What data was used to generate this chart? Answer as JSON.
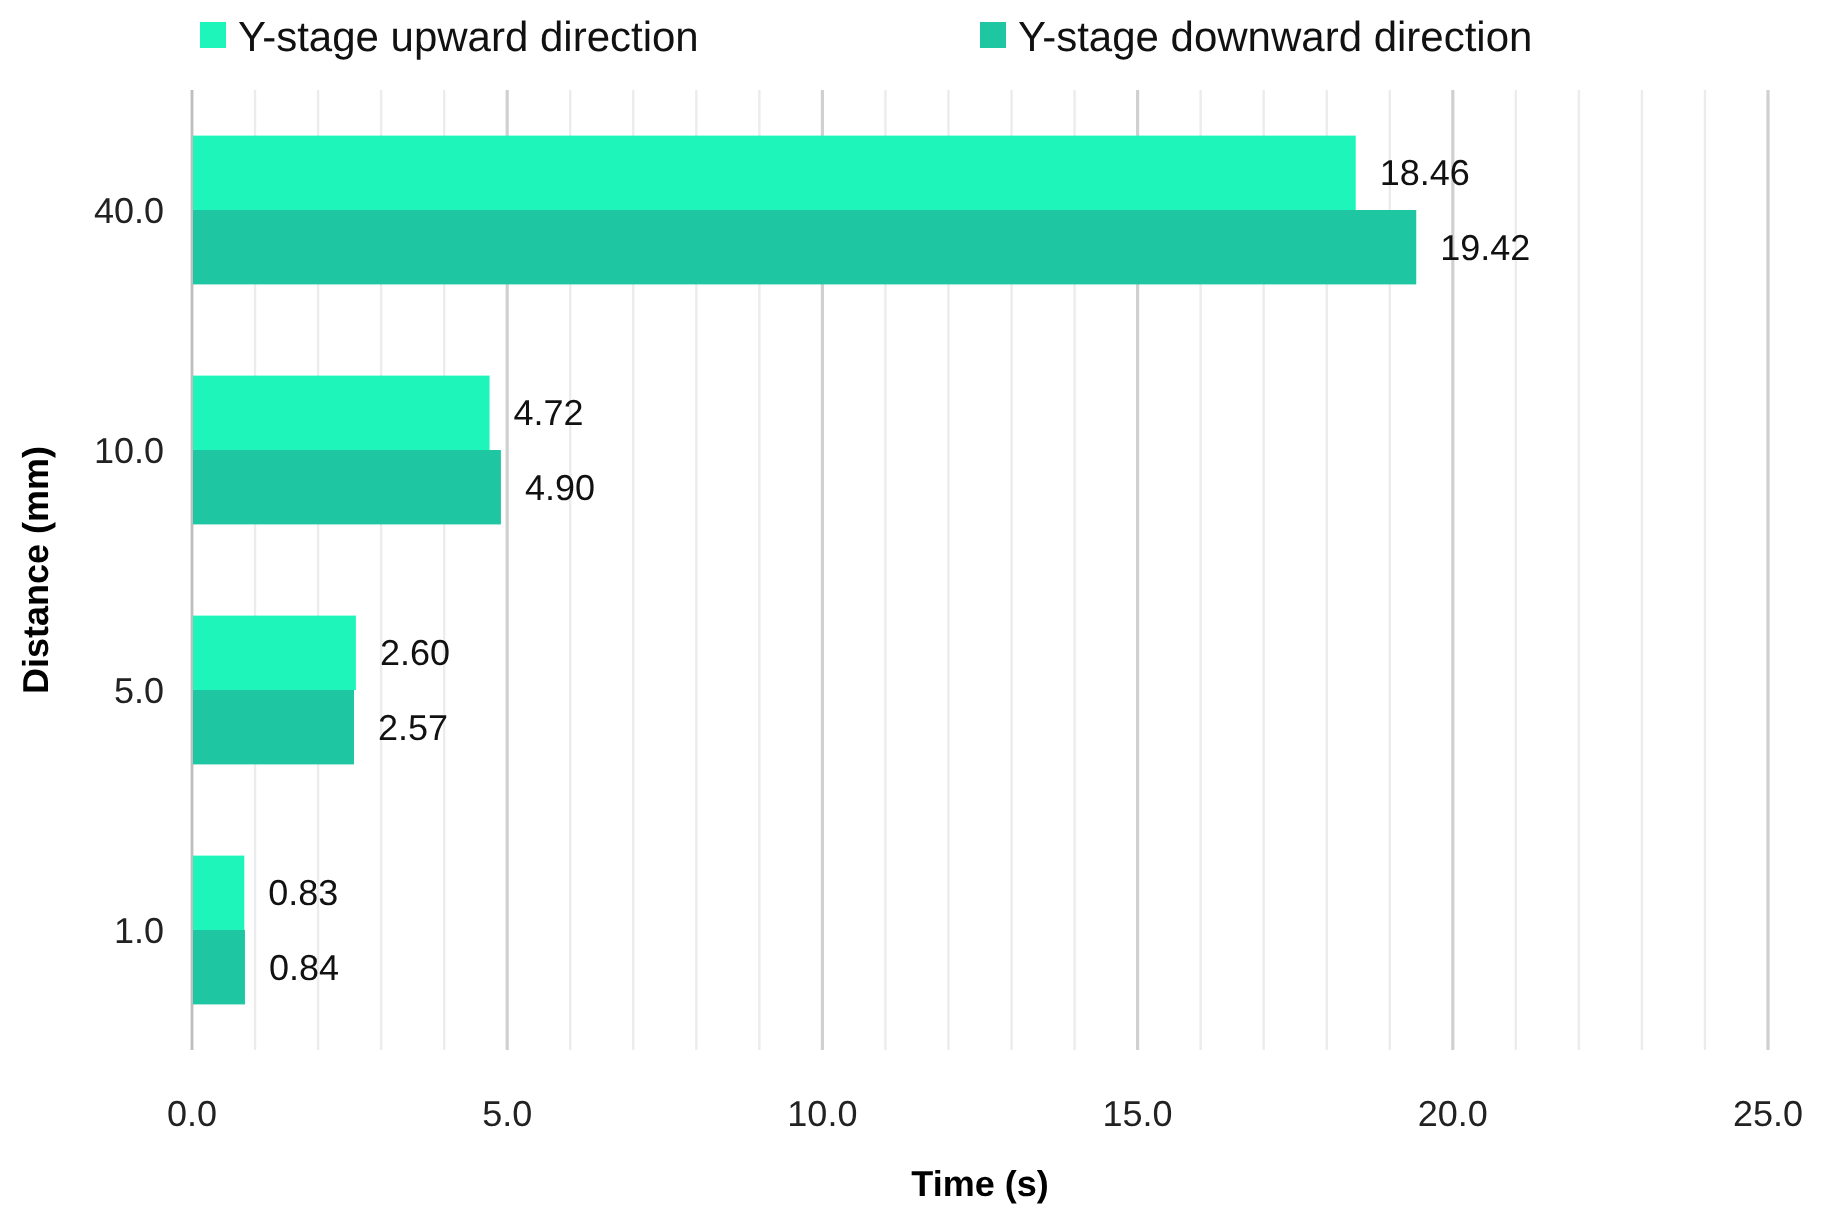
{
  "chart_data": {
    "type": "bar",
    "orientation": "horizontal",
    "xlabel": "Time (s)",
    "ylabel": "Distance (mm)",
    "categories": [
      "40.0",
      "10.0",
      "5.0",
      "1.0"
    ],
    "series": [
      {
        "name": "Y-stage upward direction",
        "color": "#1ef5bb",
        "values": [
          18.46,
          4.72,
          2.6,
          0.83
        ],
        "value_labels": [
          "18.46",
          "4.72",
          "2.60",
          "0.83"
        ]
      },
      {
        "name": "Y-stage downward direction",
        "color": "#1fc6a2",
        "values": [
          19.42,
          4.9,
          2.57,
          0.84
        ],
        "value_labels": [
          "19.42",
          "4.90",
          "2.57",
          "0.84"
        ]
      }
    ],
    "xlim": [
      0,
      25
    ],
    "xticks": [
      {
        "value": 0,
        "label": "0.0"
      },
      {
        "value": 1,
        "label": null
      },
      {
        "value": 2,
        "label": null
      },
      {
        "value": 3,
        "label": null
      },
      {
        "value": 4,
        "label": null
      },
      {
        "value": 5,
        "label": "5.0"
      },
      {
        "value": 6,
        "label": null
      },
      {
        "value": 7,
        "label": null
      },
      {
        "value": 8,
        "label": null
      },
      {
        "value": 9,
        "label": null
      },
      {
        "value": 10,
        "label": "10.0"
      },
      {
        "value": 11,
        "label": null
      },
      {
        "value": 12,
        "label": null
      },
      {
        "value": 13,
        "label": null
      },
      {
        "value": 14,
        "label": null
      },
      {
        "value": 15,
        "label": "15.0"
      },
      {
        "value": 16,
        "label": null
      },
      {
        "value": 17,
        "label": null
      },
      {
        "value": 18,
        "label": null
      },
      {
        "value": 19,
        "label": null
      },
      {
        "value": 20,
        "label": "20.0"
      },
      {
        "value": 21,
        "label": null
      },
      {
        "value": 22,
        "label": null
      },
      {
        "value": 23,
        "label": null
      },
      {
        "value": 24,
        "label": null
      },
      {
        "value": 25,
        "label": "25.0"
      }
    ],
    "grid": "x",
    "legend": "top"
  }
}
